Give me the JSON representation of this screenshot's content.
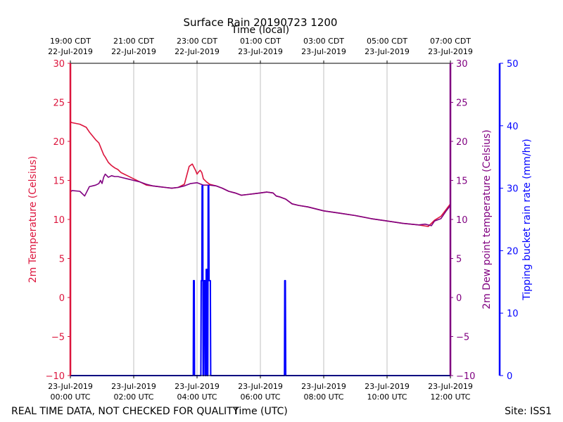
{
  "chart_data": {
    "type": "line",
    "title": "Surface Rain 20190723 1200",
    "top_axis_label": "Time (local)",
    "xlabel": "Time (UTC)",
    "ylabel_left": "2m Temperature (Celsius)",
    "ylabel_right": "2m Dew point temperature (Celsius)",
    "ylabel_far_right": "Tipping bucket rain rate (mm/hr)",
    "footer_left": "REAL TIME DATA, NOT CHECKED FOR QUALITY",
    "footer_right": "Site: ISS1",
    "xlim_hours": [
      0,
      12
    ],
    "ylim_temp": [
      -10,
      30
    ],
    "ylim_rain": [
      0,
      50
    ],
    "grid": true,
    "bottom_ticks": [
      {
        "hour": 0,
        "line1": "23-Jul-2019",
        "line2": "00:00 UTC"
      },
      {
        "hour": 2,
        "line1": "23-Jul-2019",
        "line2": "02:00 UTC"
      },
      {
        "hour": 4,
        "line1": "23-Jul-2019",
        "line2": "04:00 UTC"
      },
      {
        "hour": 6,
        "line1": "23-Jul-2019",
        "line2": "06:00 UTC"
      },
      {
        "hour": 8,
        "line1": "23-Jul-2019",
        "line2": "08:00 UTC"
      },
      {
        "hour": 10,
        "line1": "23-Jul-2019",
        "line2": "10:00 UTC"
      },
      {
        "hour": 12,
        "line1": "23-Jul-2019",
        "line2": "12:00 UTC"
      }
    ],
    "top_ticks": [
      {
        "hour": 0,
        "line1": "19:00 CDT",
        "line2": "22-Jul-2019"
      },
      {
        "hour": 2,
        "line1": "21:00 CDT",
        "line2": "22-Jul-2019"
      },
      {
        "hour": 4,
        "line1": "23:00 CDT",
        "line2": "22-Jul-2019"
      },
      {
        "hour": 6,
        "line1": "01:00 CDT",
        "line2": "23-Jul-2019"
      },
      {
        "hour": 8,
        "line1": "03:00 CDT",
        "line2": "23-Jul-2019"
      },
      {
        "hour": 10,
        "line1": "05:00 CDT",
        "line2": "23-Jul-2019"
      },
      {
        "hour": 12,
        "line1": "07:00 CDT",
        "line2": "23-Jul-2019"
      }
    ],
    "temp_ticks": [
      "30",
      "25",
      "20",
      "15",
      "10",
      "5",
      "0",
      "−5",
      "−10"
    ],
    "temp_tick_values": [
      30,
      25,
      20,
      15,
      10,
      5,
      0,
      -5,
      -10
    ],
    "rain_ticks": [
      "50",
      "40",
      "30",
      "20",
      "10",
      "0"
    ],
    "rain_tick_values": [
      50,
      40,
      30,
      20,
      10,
      0
    ],
    "series": [
      {
        "name": "2m Temperature",
        "color": "#dc143c",
        "x": [
          0,
          0.05,
          0.3,
          0.5,
          0.6,
          0.7,
          0.8,
          0.9,
          1.0,
          1.05,
          1.1,
          1.2,
          1.3,
          1.4,
          1.5,
          1.6,
          1.7,
          1.8,
          2.0,
          2.2,
          2.4,
          2.6,
          2.8,
          3.0,
          3.2,
          3.4,
          3.6,
          3.75,
          3.85,
          3.9,
          3.95,
          4.0,
          4.05,
          4.1,
          4.15,
          4.2,
          4.3,
          4.4,
          4.5,
          4.6,
          4.8,
          5.0,
          5.2,
          5.4,
          5.6,
          5.8,
          6.0,
          6.2,
          6.4,
          6.5,
          6.6,
          6.8,
          7.0,
          7.2,
          7.5,
          8.0,
          8.5,
          9.0,
          9.5,
          10.0,
          10.5,
          11.0,
          11.3,
          11.5,
          11.7,
          11.85,
          12.0
        ],
        "values": [
          22.5,
          22.4,
          22.2,
          21.8,
          21.2,
          20.7,
          20.2,
          19.8,
          18.8,
          18.3,
          18.0,
          17.3,
          16.9,
          16.6,
          16.4,
          16.0,
          15.8,
          15.6,
          15.2,
          14.8,
          14.4,
          14.3,
          14.2,
          14.1,
          14.0,
          14.1,
          14.5,
          16.8,
          17.1,
          16.7,
          16.3,
          15.8,
          16.1,
          16.3,
          16.0,
          15.2,
          14.8,
          14.5,
          14.4,
          14.3,
          14.0,
          13.6,
          13.4,
          13.1,
          13.2,
          13.3,
          13.4,
          13.5,
          13.4,
          13.0,
          12.9,
          12.6,
          12.0,
          11.8,
          11.6,
          11.1,
          10.8,
          10.5,
          10.1,
          9.8,
          9.5,
          9.3,
          9.1,
          9.9,
          10.4,
          11.2,
          12.0
        ]
      },
      {
        "name": "2m Dew point temperature",
        "color": "#800080",
        "x": [
          0,
          0.05,
          0.3,
          0.45,
          0.5,
          0.55,
          0.6,
          0.7,
          0.8,
          0.9,
          0.95,
          1.0,
          1.05,
          1.1,
          1.15,
          1.2,
          1.3,
          1.4,
          1.5,
          1.6,
          1.8,
          2.0,
          2.2,
          2.4,
          2.6,
          2.8,
          3.0,
          3.2,
          3.4,
          3.6,
          3.8,
          4.0,
          4.2,
          4.4,
          4.6,
          4.8,
          5.0,
          5.2,
          5.4,
          5.6,
          5.8,
          6.0,
          6.2,
          6.4,
          6.5,
          6.6,
          6.8,
          7.0,
          7.2,
          7.5,
          8.0,
          8.5,
          9.0,
          9.5,
          10.0,
          10.5,
          11.0,
          11.2,
          11.4,
          11.5,
          11.7,
          11.85,
          12.0
        ],
        "values": [
          13.5,
          13.7,
          13.6,
          13.0,
          13.4,
          13.8,
          14.2,
          14.3,
          14.4,
          14.6,
          15.0,
          14.6,
          15.4,
          15.8,
          15.6,
          15.4,
          15.6,
          15.5,
          15.5,
          15.4,
          15.2,
          15.0,
          14.8,
          14.5,
          14.3,
          14.2,
          14.1,
          14.0,
          14.1,
          14.3,
          14.6,
          14.7,
          14.4,
          14.4,
          14.3,
          14.0,
          13.6,
          13.4,
          13.1,
          13.2,
          13.3,
          13.4,
          13.5,
          13.4,
          13.0,
          12.9,
          12.6,
          12.0,
          11.8,
          11.6,
          11.1,
          10.8,
          10.5,
          10.1,
          9.8,
          9.5,
          9.3,
          9.4,
          9.2,
          9.8,
          10.1,
          11.0,
          11.8
        ]
      },
      {
        "name": "Tipping bucket rain rate",
        "color": "#0000ff",
        "x": [
          0,
          3.88,
          3.89,
          3.91,
          3.92,
          4.12,
          4.13,
          4.15,
          4.16,
          4.18,
          4.19,
          4.21,
          4.22,
          4.25,
          4.26,
          4.28,
          4.29,
          4.31,
          4.32,
          4.34,
          4.35,
          4.37,
          4.38,
          4.42,
          4.43,
          4.44,
          4.45,
          6.76,
          6.77,
          6.79,
          6.8,
          12.0
        ],
        "values": [
          0,
          0,
          15.2,
          15.2,
          0,
          0,
          15.2,
          15.2,
          30.4,
          30.4,
          0,
          0,
          15.2,
          15.2,
          0,
          0,
          17.0,
          17.0,
          0,
          0,
          30.4,
          30.4,
          15.2,
          15.2,
          0,
          0,
          0,
          0,
          15.2,
          15.2,
          0,
          0
        ]
      }
    ]
  }
}
